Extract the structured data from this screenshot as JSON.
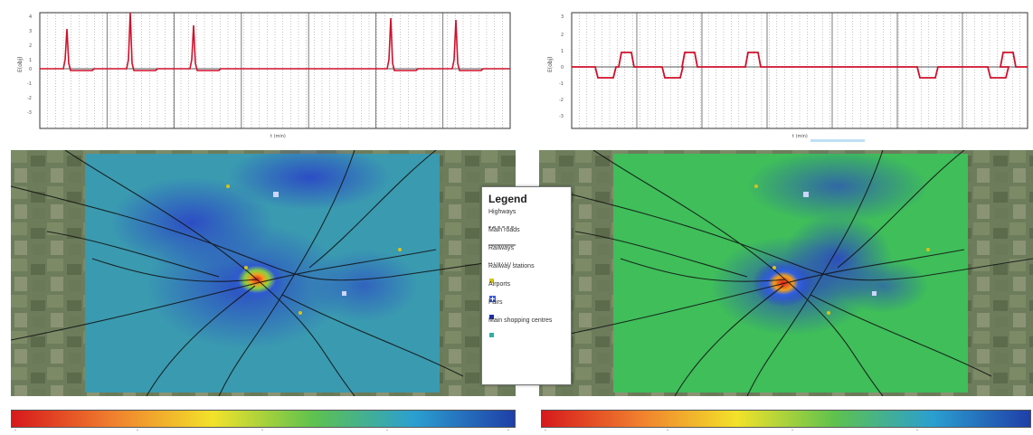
{
  "plots": [
    {
      "ylabel": "E(obj)",
      "xlabel": "t (min)"
    },
    {
      "ylabel": "E(obj)",
      "xlabel": "t (min)"
    }
  ],
  "legend": {
    "title": "Legend",
    "items": [
      {
        "label": "Highways",
        "icon": "highway-dashed-line"
      },
      {
        "label": "Main roads",
        "icon": "main-road-line"
      },
      {
        "label": "Railways",
        "icon": "railway-dotted-line"
      },
      {
        "label": "Railway stations",
        "icon": "station-dot",
        "color": "#d8c21a"
      },
      {
        "label": "Airports",
        "icon": "airport-square",
        "color": "#3b5bd8"
      },
      {
        "label": "Fairs",
        "icon": "fair-dot",
        "color": "#1a2fb0"
      },
      {
        "label": "Main shopping centres",
        "icon": "shopping-dot",
        "color": "#2fb0a0"
      }
    ]
  },
  "colorbars": [
    {
      "gradient": [
        "#d7191c",
        "#f07f2e",
        "#f2e22a",
        "#5ec24e",
        "#2b9fd0",
        "#1f3fa8"
      ]
    },
    {
      "gradient": [
        "#d7191c",
        "#f07f2e",
        "#f2e22a",
        "#5ec24e",
        "#2b9fd0",
        "#1f3fa8"
      ]
    }
  ],
  "colors": {
    "plot_line": "#d0112b",
    "grid": "#666"
  }
}
